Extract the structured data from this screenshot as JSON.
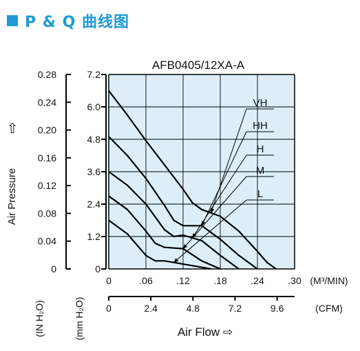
{
  "heading": "P & Q 曲线图",
  "colors": {
    "accent": "#1e9ad6",
    "plot_bg": "#ddeef8",
    "line": "#000000"
  },
  "chart_data": {
    "type": "line",
    "title": "AFB0405/12XA-A",
    "xlabel": "Air Flow ⇨",
    "ylabel": "Air Pressure",
    "ylabel_arrow": "⇧",
    "x_unit": "(M³/MIN)",
    "x_unit_secondary": "(CFM)",
    "y_unit_left": "(IN H₂O)",
    "y_unit_right": "(mm H₂O)",
    "xlim": [
      0,
      0.3
    ],
    "ylim": [
      0,
      7.2
    ],
    "grid": true,
    "x_ticks": [
      "0",
      ".06",
      ".12",
      ".18",
      ".24",
      ".30"
    ],
    "x_ticks_secondary": [
      "0",
      "2.4",
      "4.8",
      "7.2",
      "9.6"
    ],
    "y_ticks_left": [
      "0",
      "0.04",
      "0.08",
      "0.12",
      "0.16",
      "0.20",
      "0.24",
      "0.28"
    ],
    "y_ticks_right": [
      "0",
      "1.2",
      "2.4",
      "3.6",
      "4.8",
      "6.0",
      "7.2"
    ],
    "series": [
      {
        "name": "VH",
        "x": [
          0,
          0.03,
          0.06,
          0.09,
          0.12,
          0.135,
          0.15,
          0.18,
          0.21,
          0.24,
          0.255,
          0.27
        ],
        "y": [
          6.6,
          5.7,
          4.75,
          3.85,
          2.95,
          2.45,
          2.2,
          1.95,
          1.4,
          0.65,
          0.25,
          0.0
        ]
      },
      {
        "name": "HH",
        "x": [
          0,
          0.03,
          0.06,
          0.09,
          0.105,
          0.12,
          0.15,
          0.18,
          0.21,
          0.24
        ],
        "y": [
          4.9,
          4.2,
          3.35,
          2.35,
          1.8,
          1.6,
          1.6,
          1.1,
          0.5,
          0.0
        ]
      },
      {
        "name": "H",
        "x": [
          0,
          0.03,
          0.06,
          0.09,
          0.105,
          0.12,
          0.15,
          0.18,
          0.21
        ],
        "y": [
          3.6,
          3.1,
          2.4,
          1.45,
          1.2,
          1.25,
          1.05,
          0.5,
          0.0
        ]
      },
      {
        "name": "M",
        "x": [
          0,
          0.03,
          0.06,
          0.075,
          0.09,
          0.12,
          0.15,
          0.18
        ],
        "y": [
          2.7,
          2.2,
          1.4,
          0.95,
          0.8,
          0.75,
          0.3,
          0.0
        ]
      },
      {
        "name": "L",
        "x": [
          0,
          0.03,
          0.06,
          0.075,
          0.09,
          0.12,
          0.15,
          0.165
        ],
        "y": [
          1.8,
          1.3,
          0.5,
          0.3,
          0.3,
          0.18,
          0.06,
          0.0
        ]
      }
    ],
    "legend_placement": "top-right, labels with leader arrows"
  }
}
